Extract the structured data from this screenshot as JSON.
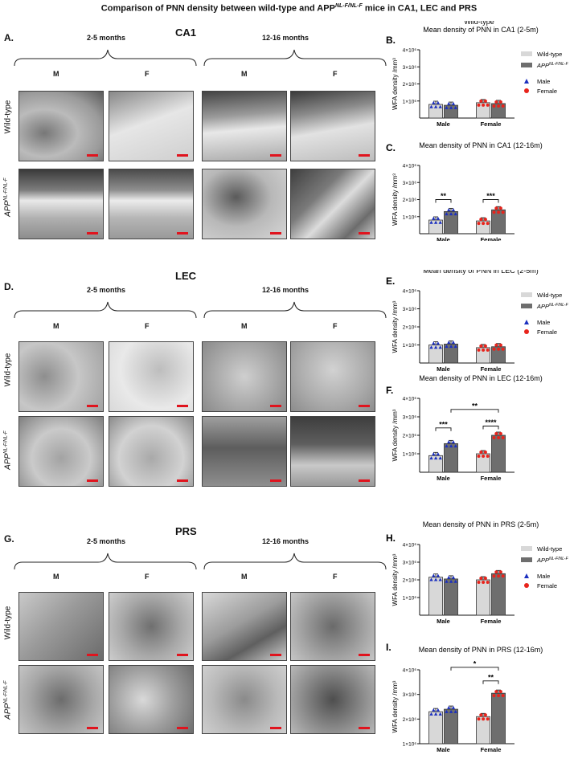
{
  "figure": {
    "title": "Comparison of PNN density between wild-type and APP",
    "title_sup": "NL-F/NL-F",
    "title_end": " mice  in CA1, LEC and PRS",
    "panels": {
      "A": "A.",
      "B": "B.",
      "C": "C.",
      "D": "D.",
      "E": "E.",
      "F": "F.",
      "G": "G.",
      "H": "H.",
      "I": "I."
    },
    "regions": {
      "ca1": "CA1",
      "lec": "LEC",
      "prs": "PRS"
    },
    "ages": {
      "young": "2-5 months",
      "old": "12-16 months"
    },
    "sexes": {
      "male": "M",
      "female": "F"
    },
    "rows": {
      "wt": "Wild-type",
      "app": "APP",
      "app_sup": "NL-F/NL-F"
    }
  },
  "colors": {
    "wt_bar": "#d8d8d8",
    "app_bar": "#6e6e6e",
    "male": "#1b2fbf",
    "female": "#e8241c",
    "scalebar": "#e0141e"
  },
  "legend": {
    "wt": "Wild-type",
    "app": "APP",
    "app_sup": "NL-F/NL-F",
    "male": "Male",
    "female": "Female"
  },
  "chart_data": [
    {
      "id": "B",
      "type": "bar",
      "title_top": "Wild-type",
      "title": "Mean density of PNN in CA1 (2-5m)",
      "ylabel": "WFA density /mm³",
      "ylim": [
        0,
        4000000
      ],
      "yticks": [
        "1×10⁶",
        "2×10⁶",
        "3×10⁶",
        "4×10⁶"
      ],
      "categories": [
        "Male",
        "Female"
      ],
      "series": [
        {
          "name": "Wild-type",
          "values": [
            800000,
            900000
          ]
        },
        {
          "name": "APP NL-F/NL-F",
          "values": [
            750000,
            850000
          ]
        }
      ],
      "sig": []
    },
    {
      "id": "C",
      "type": "bar",
      "title": "Mean density of PNN in CA1 (12-16m)",
      "ylabel": "WFA density /mm³",
      "ylim": [
        0,
        4000000
      ],
      "yticks": [
        "1×10⁶",
        "2×10⁶",
        "3×10⁶",
        "4×10⁶"
      ],
      "categories": [
        "Male",
        "Female"
      ],
      "series": [
        {
          "name": "Wild-type",
          "values": [
            800000,
            750000
          ]
        },
        {
          "name": "APP NL-F/NL-F",
          "values": [
            1300000,
            1400000
          ]
        }
      ],
      "sig": [
        {
          "label": "**"
        },
        {
          "label": "***"
        }
      ]
    },
    {
      "id": "E",
      "type": "bar",
      "title": "Mean density of PNN in LEC (2-5m)",
      "ylabel": "WFA density /mm³",
      "ylim": [
        0,
        4000000
      ],
      "yticks": [
        "1×10⁶",
        "2×10⁶",
        "3×10⁶",
        "4×10⁶"
      ],
      "categories": [
        "Male",
        "Female"
      ],
      "series": [
        {
          "name": "Wild-type",
          "values": [
            1000000,
            850000
          ]
        },
        {
          "name": "APP NL-F/NL-F",
          "values": [
            1050000,
            900000
          ]
        }
      ],
      "sig": []
    },
    {
      "id": "F",
      "type": "bar",
      "title": "Mean density of PNN in LEC (12-16m)",
      "ylabel": "WFA density /mm³",
      "ylim": [
        0,
        4000000
      ],
      "yticks": [
        "1×10⁶",
        "2×10⁶",
        "3×10⁶",
        "4×10⁶"
      ],
      "categories": [
        "Male",
        "Female"
      ],
      "series": [
        {
          "name": "Wild-type",
          "values": [
            900000,
            1000000
          ]
        },
        {
          "name": "APP NL-F/NL-F",
          "values": [
            1550000,
            2000000
          ]
        }
      ],
      "sig": [
        {
          "label": "***"
        },
        {
          "label": "****"
        },
        {
          "label": "**"
        }
      ]
    },
    {
      "id": "H",
      "type": "bar",
      "title": "Mean density of PNN in PRS (2-5m)",
      "ylabel": "WFA density /mm³",
      "ylim": [
        0,
        4000000
      ],
      "yticks": [
        "1×10⁶",
        "2×10⁶",
        "3×10⁶",
        "4×10⁶"
      ],
      "categories": [
        "Male",
        "Female"
      ],
      "series": [
        {
          "name": "Wild-type",
          "values": [
            2150000,
            2000000
          ]
        },
        {
          "name": "APP NL-F/NL-F",
          "values": [
            2050000,
            2350000
          ]
        }
      ],
      "sig": []
    },
    {
      "id": "I",
      "type": "bar",
      "title": "Mean density of PNN in PRS (12-16m)",
      "ylabel": "WFA density /mm³",
      "ylim": [
        1000000,
        4000000
      ],
      "yticks": [
        "1×10⁶",
        "2×10⁶",
        "3×10⁶",
        "4×10⁶"
      ],
      "categories": [
        "Male",
        "Female"
      ],
      "series": [
        {
          "name": "Wild-type",
          "values": [
            2300000,
            2100000
          ]
        },
        {
          "name": "APP NL-F/NL-F",
          "values": [
            2400000,
            3050000
          ]
        }
      ],
      "sig": [
        {
          "label": "**"
        },
        {
          "label": "*"
        }
      ]
    }
  ]
}
